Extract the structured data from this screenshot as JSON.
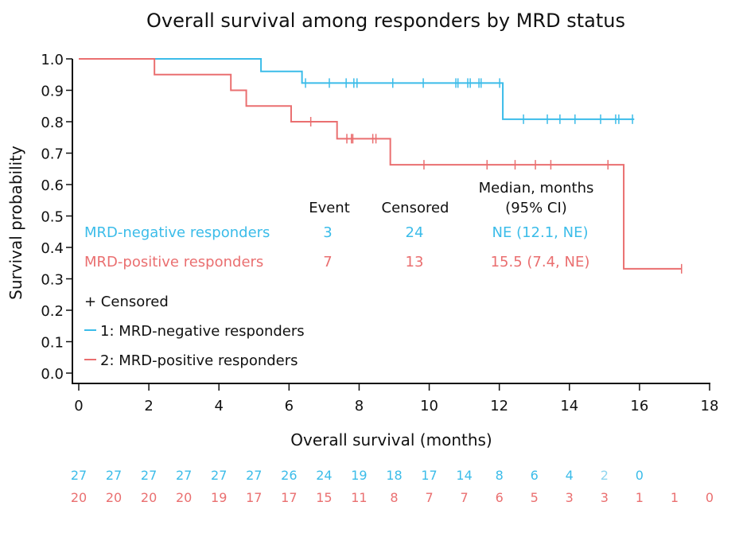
{
  "chart_data": {
    "type": "line",
    "subtype": "kaplan-meier",
    "title": "Overall survival among responders by MRD status",
    "xlabel": "Overall survival (months)",
    "ylabel": "Survival probability",
    "xlim": [
      0,
      18
    ],
    "ylim": [
      0,
      1
    ],
    "x_ticks": [
      "0",
      "2",
      "4",
      "6",
      "8",
      "10",
      "12",
      "14",
      "16",
      "18"
    ],
    "y_ticks": [
      "0.0",
      "0.1",
      "0.2",
      "0.3",
      "0.4",
      "0.5",
      "0.6",
      "0.7",
      "0.8",
      "0.9",
      "1.0"
    ],
    "grid": false,
    "series": [
      {
        "name": "MRD-negative responders",
        "legend_label": "1: MRD-negative responders",
        "color": "#3bbce9",
        "steps": [
          [
            0,
            1.0
          ],
          [
            5.2,
            0.96
          ],
          [
            6.37,
            0.923
          ],
          [
            12.1,
            0.808
          ]
        ],
        "end_x": 15.85,
        "censored": [
          [
            6.47,
            0.923
          ],
          [
            7.15,
            0.923
          ],
          [
            7.63,
            0.923
          ],
          [
            7.85,
            0.923
          ],
          [
            7.94,
            0.923
          ],
          [
            8.96,
            0.923
          ],
          [
            9.83,
            0.923
          ],
          [
            10.76,
            0.923
          ],
          [
            10.82,
            0.923
          ],
          [
            11.1,
            0.923
          ],
          [
            11.17,
            0.923
          ],
          [
            11.42,
            0.923
          ],
          [
            11.48,
            0.923
          ],
          [
            12.01,
            0.923
          ],
          [
            12.69,
            0.808
          ],
          [
            13.37,
            0.808
          ],
          [
            13.73,
            0.808
          ],
          [
            14.16,
            0.808
          ],
          [
            14.89,
            0.808
          ],
          [
            15.32,
            0.808
          ],
          [
            15.41,
            0.808
          ],
          [
            15.8,
            0.808
          ]
        ]
      },
      {
        "name": "MRD-positive responders",
        "legend_label": "2: MRD-positive responders",
        "color": "#ea6f70",
        "steps": [
          [
            0,
            1.0
          ],
          [
            2.16,
            0.95
          ],
          [
            4.34,
            0.9
          ],
          [
            4.78,
            0.85
          ],
          [
            6.06,
            0.8
          ],
          [
            7.37,
            0.746
          ],
          [
            8.89,
            0.663
          ],
          [
            15.55,
            0.332
          ]
        ],
        "end_x": 17.2,
        "censored": [
          [
            6.62,
            0.8
          ],
          [
            7.65,
            0.746
          ],
          [
            7.78,
            0.746
          ],
          [
            7.82,
            0.746
          ],
          [
            8.39,
            0.746
          ],
          [
            8.48,
            0.746
          ],
          [
            9.85,
            0.663
          ],
          [
            11.65,
            0.663
          ],
          [
            12.45,
            0.663
          ],
          [
            13.03,
            0.663
          ],
          [
            13.47,
            0.663
          ],
          [
            15.1,
            0.663
          ],
          [
            17.2,
            0.332
          ]
        ]
      }
    ],
    "summary_table": {
      "headers": [
        "Event",
        "Censored",
        "Median, months",
        "(95% CI)"
      ],
      "rows": [
        {
          "group": "MRD-negative responders",
          "event": "3",
          "censored": "24",
          "median": "NE (12.1, NE)"
        },
        {
          "group": "MRD-positive responders",
          "event": "7",
          "censored": "13",
          "median": "15.5 (7.4, NE)"
        }
      ]
    },
    "legend": {
      "placement": "bottom-left",
      "censored_label": "+ Censored",
      "entries": [
        "1: MRD-negative responders",
        "2: MRD-positive responders"
      ]
    },
    "numbers_at_risk": {
      "MRD-negative responders": [
        "27",
        "27",
        "27",
        "27",
        "27",
        "27",
        "26",
        "24",
        "19",
        "18",
        "17",
        "14",
        "8",
        "6",
        "4",
        "2",
        "0"
      ],
      "MRD-positive responders": [
        "20",
        "20",
        "20",
        "20",
        "19",
        "17",
        "17",
        "15",
        "11",
        "8",
        "7",
        "7",
        "6",
        "5",
        "3",
        "3",
        "1",
        "1",
        "0"
      ]
    }
  },
  "colors": {
    "negative": "#3bbce9",
    "negative_faded": "#8fd5ef",
    "positive": "#ea6f70",
    "axis": "#111111"
  }
}
